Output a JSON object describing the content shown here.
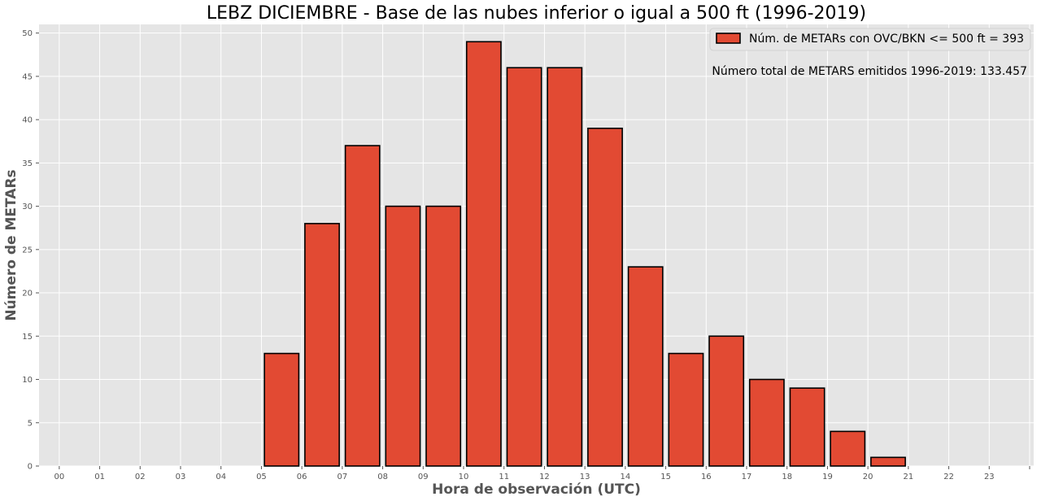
{
  "colors": {
    "plot_background": "#e5e5e5",
    "grid": "#ffffff",
    "bar_fill": "#e24a33",
    "bar_edge": "#000000",
    "legend_background": "#e5e5e5",
    "axis_text": "#555555"
  },
  "chart_data": {
    "type": "bar",
    "title": "LEBZ DICIEMBRE - Base de las nubes inferior o igual a 500 ft (1996-2019)",
    "xlabel": "Hora de observación (UTC)",
    "ylabel": "Número de METARs",
    "categories": [
      "00",
      "01",
      "02",
      "03",
      "04",
      "05",
      "06",
      "07",
      "08",
      "09",
      "10",
      "11",
      "12",
      "13",
      "14",
      "15",
      "16",
      "17",
      "18",
      "19",
      "20",
      "21",
      "22",
      "23"
    ],
    "series": [
      {
        "name": "Núm. de METARs con OVC/BKN <= 500 ft = 393",
        "values": [
          0,
          0,
          0,
          0,
          0,
          13,
          28,
          37,
          30,
          30,
          49,
          46,
          46,
          39,
          23,
          13,
          15,
          10,
          9,
          4,
          1,
          0,
          0,
          0
        ]
      }
    ],
    "ylim": [
      0,
      51
    ],
    "yticks": [
      0,
      5,
      10,
      15,
      20,
      25,
      30,
      35,
      40,
      45,
      50
    ],
    "grid": true,
    "legend_position": "top-right",
    "annotation": "Número total de METARS emitidos 1996-2019:  133.457"
  }
}
